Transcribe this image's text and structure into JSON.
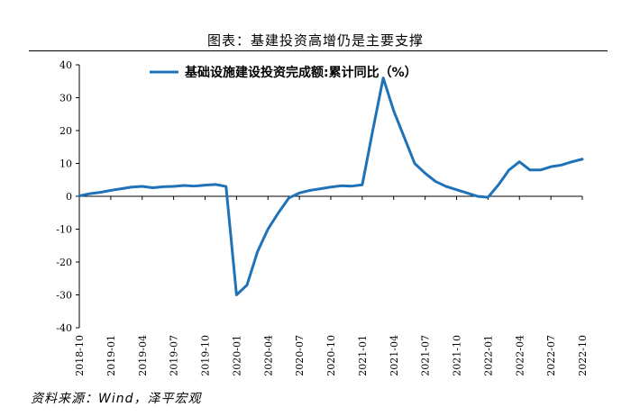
{
  "figure_title": "图表：基建投资高增仍是主要支撑",
  "source_note": "资料来源：Wind，泽平宏观",
  "colors": {
    "line": "#1f72b8",
    "axis": "#000000"
  },
  "chart_data": {
    "type": "line",
    "title": "",
    "xlabel": "",
    "ylabel": "",
    "ylim": [
      -40,
      40
    ],
    "yticks": [
      -40,
      -30,
      -20,
      -10,
      0,
      10,
      20,
      30,
      40
    ],
    "x_tick_labels": [
      "2018-10",
      "2019-01",
      "2019-04",
      "2019-07",
      "2019-10",
      "2020-01",
      "2020-04",
      "2020-07",
      "2020-10",
      "2021-01",
      "2021-04",
      "2021-07",
      "2021-10",
      "2022-01",
      "2022-04",
      "2022-07",
      "2022-10"
    ],
    "x": [
      "2018-10",
      "2018-11",
      "2018-12",
      "2019-01",
      "2019-02",
      "2019-03",
      "2019-04",
      "2019-05",
      "2019-06",
      "2019-07",
      "2019-08",
      "2019-09",
      "2019-10",
      "2019-11",
      "2019-12",
      "2020-01",
      "2020-02",
      "2020-03",
      "2020-04",
      "2020-05",
      "2020-06",
      "2020-07",
      "2020-08",
      "2020-09",
      "2020-10",
      "2020-11",
      "2020-12",
      "2021-01",
      "2021-02",
      "2021-03",
      "2021-04",
      "2021-05",
      "2021-06",
      "2021-07",
      "2021-08",
      "2021-09",
      "2021-10",
      "2021-11",
      "2021-12",
      "2022-01",
      "2022-02",
      "2022-03",
      "2022-04",
      "2022-05",
      "2022-06",
      "2022-07",
      "2022-08",
      "2022-09",
      "2022-10"
    ],
    "legend": {
      "position": "top-center"
    },
    "series": [
      {
        "name": "基础设施建设投资完成额:累计同比（%）",
        "values": [
          0.1,
          0.8,
          1.2,
          1.8,
          2.3,
          2.8,
          3.0,
          2.6,
          2.9,
          3.0,
          3.3,
          3.1,
          3.4,
          3.6,
          3.0,
          -30.0,
          -27.0,
          -16.9,
          -10.0,
          -5.0,
          -0.5,
          1.0,
          1.8,
          2.3,
          2.8,
          3.2,
          3.1,
          3.5,
          20.0,
          36.0,
          26.0,
          18.0,
          10.0,
          7.0,
          4.5,
          3.0,
          2.0,
          1.0,
          0.0,
          -0.3,
          3.5,
          8.0,
          10.5,
          8.0,
          8.0,
          9.0,
          9.5,
          10.5,
          11.3
        ]
      }
    ]
  }
}
